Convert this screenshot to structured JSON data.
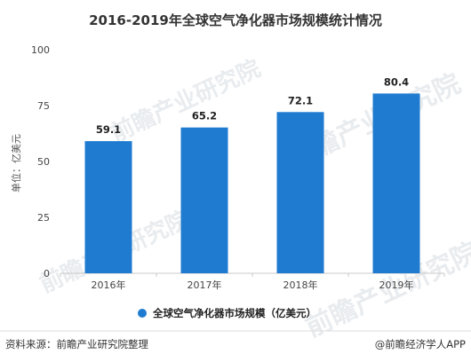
{
  "chart_data": {
    "type": "bar",
    "title": "2016-2019年全球空气净化器市场规模统计情况",
    "categories": [
      "2016年",
      "2017年",
      "2018年",
      "2019年"
    ],
    "series": [
      {
        "name": "全球空气净化器市场规模（亿美元）",
        "values": [
          59.1,
          65.2,
          72.1,
          80.4
        ],
        "color": "#1f7bd0"
      }
    ],
    "data_labels": [
      "59.1",
      "65.2",
      "72.1",
      "80.4"
    ],
    "ylabel": "单位：亿美元",
    "xlabel": "",
    "ylim": [
      0,
      100
    ],
    "yticks": [
      0,
      25,
      50,
      75,
      100
    ],
    "grid": false,
    "legend_position": "bottom"
  },
  "footer": {
    "source": "资料来源：前瞻产业研究院整理",
    "brand": "@前瞻经济学人APP"
  },
  "watermark": {
    "text": "前瞻产业研究院"
  }
}
